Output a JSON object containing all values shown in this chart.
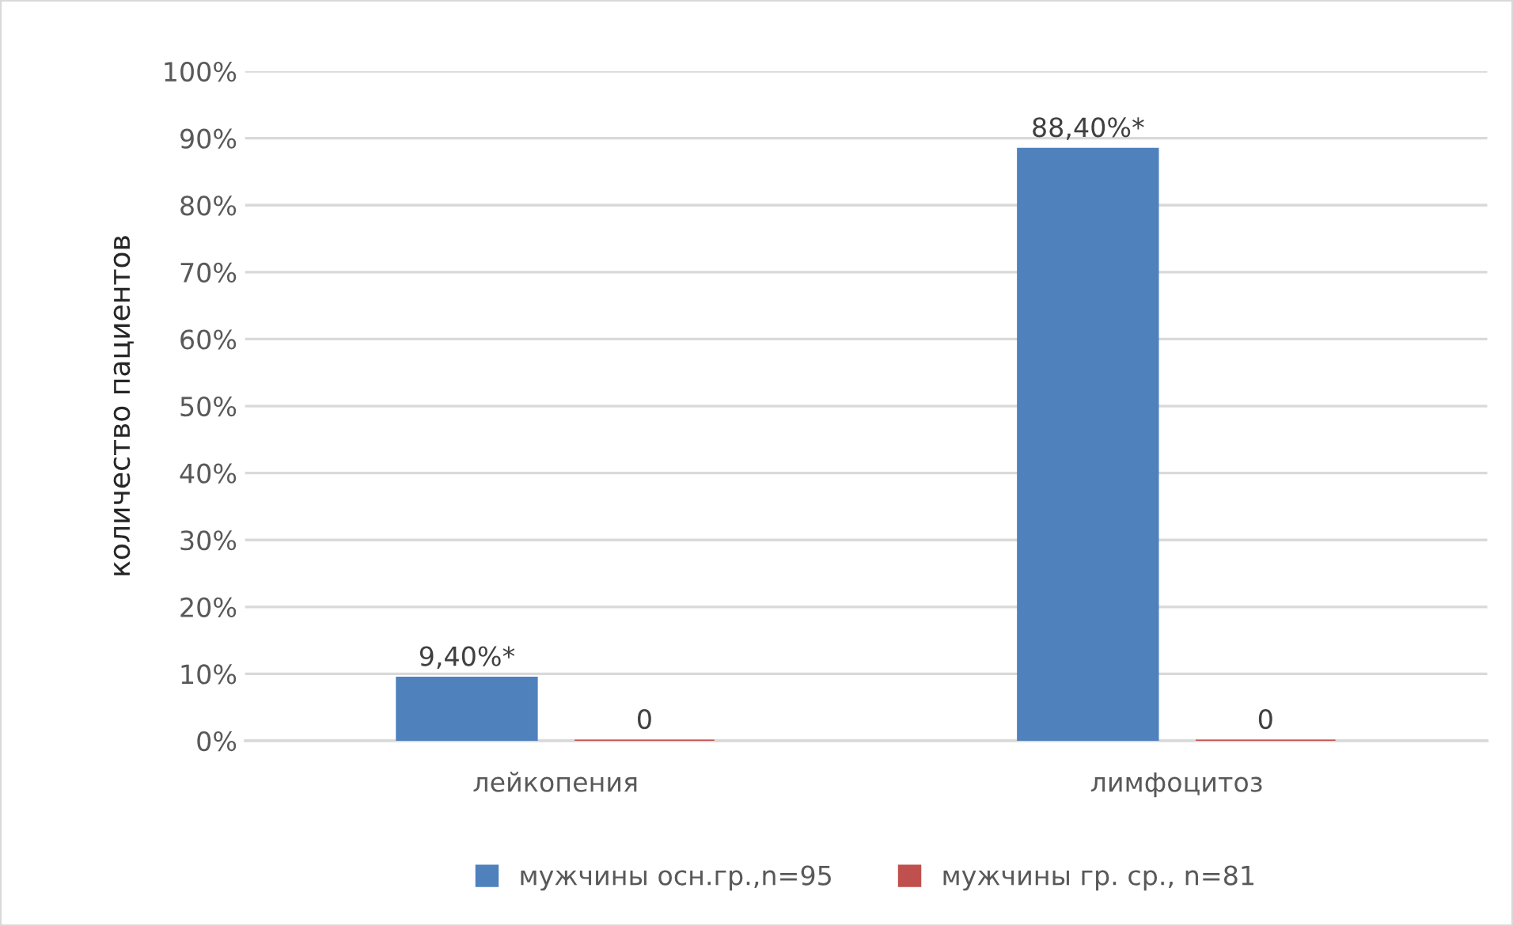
{
  "chart_data": {
    "type": "bar",
    "ylabel": "количество пациентов",
    "categories": [
      "лейкопения",
      "лимфоцитоз"
    ],
    "series": [
      {
        "name": "мужчины осн.гр.,n=95",
        "color": "#4f81bd",
        "values": [
          9.4,
          88.4
        ],
        "value_labels": [
          "9,40%*",
          "88,40%*"
        ]
      },
      {
        "name": "мужчины гр. ср., n=81",
        "color": "#c0504d",
        "values": [
          0,
          0
        ],
        "value_labels": [
          "0",
          "0"
        ]
      }
    ],
    "ylim": [
      0,
      100
    ],
    "yticks": [
      {
        "value": 0,
        "label": "0%"
      },
      {
        "value": 10,
        "label": "10%"
      },
      {
        "value": 20,
        "label": "20%"
      },
      {
        "value": 30,
        "label": "30%"
      },
      {
        "value": 40,
        "label": "40%"
      },
      {
        "value": 50,
        "label": "50%"
      },
      {
        "value": 60,
        "label": "60%"
      },
      {
        "value": 70,
        "label": "70%"
      },
      {
        "value": 80,
        "label": "80%"
      },
      {
        "value": 90,
        "label": "90%"
      },
      {
        "value": 100,
        "label": "100%"
      }
    ],
    "grid": "y",
    "legend": "bottom"
  }
}
